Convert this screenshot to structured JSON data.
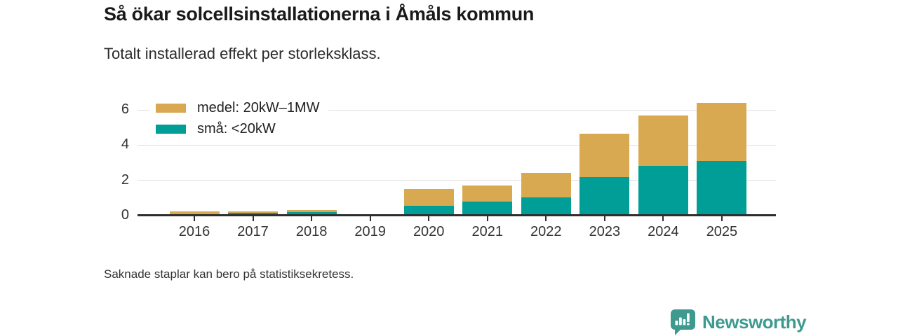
{
  "header": {
    "title": "Så ökar solcellsinstallationerna i Åmåls kommun",
    "subtitle": "Totalt installerad effekt per storleksklass."
  },
  "legend": {
    "items": [
      {
        "label": "medel: 20kW–1MW",
        "color": "#D9A952",
        "series_key": "medel"
      },
      {
        "label": "små: <20kW",
        "color": "#009E96",
        "series_key": "sma"
      }
    ]
  },
  "chart_data": {
    "type": "bar",
    "stacked": true,
    "title": "Så ökar solcellsinstallationerna i Åmåls kommun",
    "subtitle": "Totalt installerad effekt per storleksklass.",
    "categories": [
      "2016",
      "2017",
      "2018",
      "2019",
      "2020",
      "2021",
      "2022",
      "2023",
      "2024",
      "2025"
    ],
    "series": [
      {
        "key": "sma",
        "name": "små: <20kW",
        "color": "#009E96",
        "values": [
          0.08,
          0.16,
          0.2,
          0,
          0.55,
          0.79,
          1.03,
          2.2,
          2.84,
          3.11
        ]
      },
      {
        "key": "medel",
        "name": "medel: 20kW–1MW",
        "color": "#D9A952",
        "values": [
          0.17,
          0.02,
          0.1,
          0,
          0.95,
          0.92,
          1.39,
          2.46,
          2.85,
          3.29
        ]
      }
    ],
    "xlabel": "",
    "ylabel": "",
    "yticks": [
      0,
      2,
      4,
      6
    ],
    "ylim": [
      0,
      6.68
    ],
    "grid": "horizontal",
    "legend_position": "top-left",
    "missing_bars_note": "Saknade staplar kan bero på statistiksekretess."
  },
  "footer": {
    "note": "Saknade staplar kan bero på statistiksekretess.",
    "brand": "Newsworthy",
    "brand_color": "#3E998F"
  },
  "axis_colors": {
    "grid": "#e2e2e2",
    "axis": "#2e2e2e",
    "label": "#333333"
  }
}
